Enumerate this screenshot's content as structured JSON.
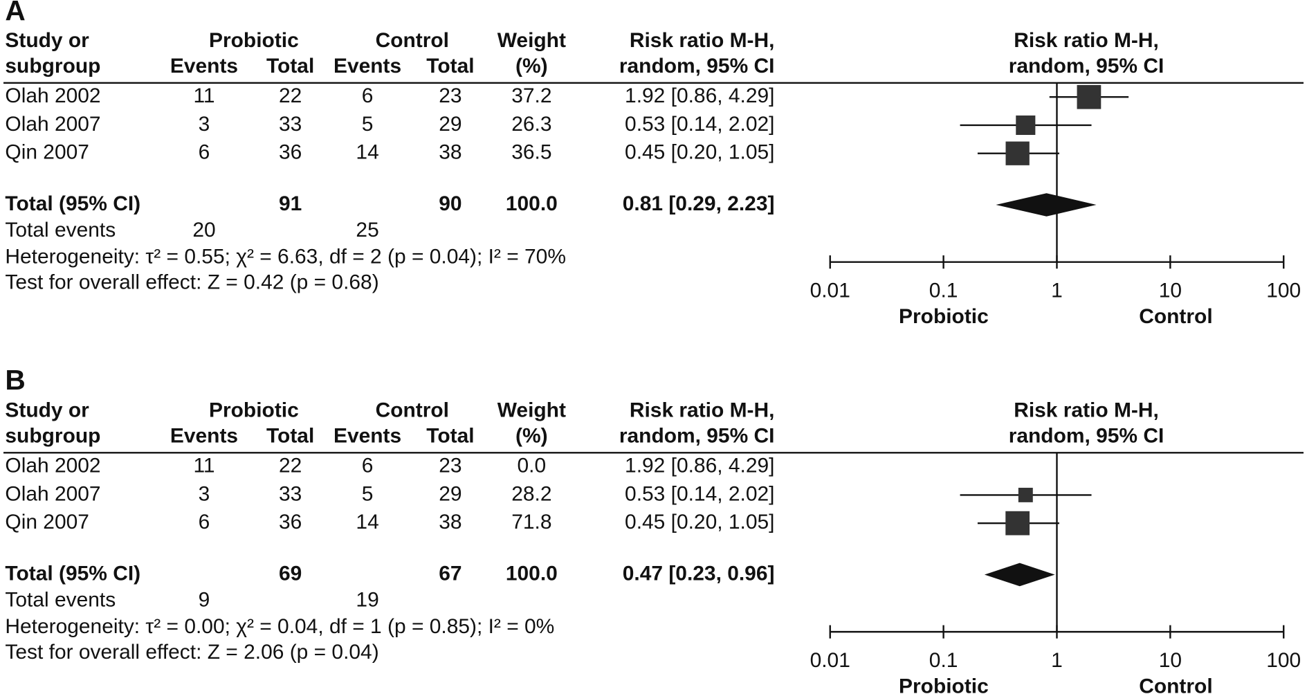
{
  "chart_data": [
    {
      "type": "forest",
      "label": "A",
      "header": {
        "study": [
          "Study or",
          "subgroup"
        ],
        "probiotic": "Probiotic",
        "control": "Control",
        "events": "Events",
        "total": "Total",
        "weight": [
          "Weight",
          "(%)"
        ],
        "ci": [
          "Risk ratio M-H,",
          "random, 95% CI"
        ],
        "plot": [
          "Risk ratio M-H,",
          "random, 95% CI"
        ]
      },
      "studies": [
        {
          "name": "Olah 2002",
          "events_probiotic": 11,
          "total_probiotic": 22,
          "events_control": 6,
          "total_control": 23,
          "weight": 37.2,
          "weight_label": "37.2",
          "ci_label": "1.92 [0.86, 4.29]",
          "rr": 1.92,
          "ci": [
            0.86,
            4.29
          ]
        },
        {
          "name": "Olah 2007",
          "events_probiotic": 3,
          "total_probiotic": 33,
          "events_control": 5,
          "total_control": 29,
          "weight": 26.3,
          "weight_label": "26.3",
          "ci_label": "0.53 [0.14, 2.02]",
          "rr": 0.53,
          "ci": [
            0.14,
            2.02
          ]
        },
        {
          "name": "Qin 2007",
          "events_probiotic": 6,
          "total_probiotic": 36,
          "events_control": 14,
          "total_control": 38,
          "weight": 36.5,
          "weight_label": "36.5",
          "ci_label": "0.45 [0.20, 1.05]",
          "rr": 0.45,
          "ci": [
            0.2,
            1.05
          ]
        }
      ],
      "total": {
        "name": "Total (95% CI)",
        "total_probiotic": 91,
        "total_control": 90,
        "weight_label": "100.0",
        "ci_label": "0.81 [0.29, 2.23]",
        "rr": 0.81,
        "ci": [
          0.29,
          2.23
        ]
      },
      "total_events": {
        "name": "Total events",
        "probiotic": 20,
        "control": 25
      },
      "heterogeneity": "Heterogeneity: τ² = 0.55; χ² = 6.63, df = 2 (p = 0.04); I² = 70%",
      "overall_effect": "Test for overall effect: Z = 0.42 (p = 0.68)",
      "log_x": true,
      "xlim": [
        0.01,
        100
      ],
      "xticks": [
        0.01,
        0.1,
        1,
        10,
        100
      ],
      "xlabels": [
        "Probiotic",
        "Control"
      ]
    },
    {
      "type": "forest",
      "label": "B",
      "header": {
        "study": [
          "Study or",
          "subgroup"
        ],
        "probiotic": "Probiotic",
        "control": "Control",
        "events": "Events",
        "total": "Total",
        "weight": [
          "Weight",
          "(%)"
        ],
        "ci": [
          "Risk ratio M-H,",
          "random, 95% CI"
        ],
        "plot": [
          "Risk ratio M-H,",
          "random, 95% CI"
        ]
      },
      "studies": [
        {
          "name": "Olah 2002",
          "events_probiotic": 11,
          "total_probiotic": 22,
          "events_control": 6,
          "total_control": 23,
          "weight": 0,
          "weight_label": "0.0",
          "ci_label": "1.92 [0.86, 4.29]",
          "rr": 1.92,
          "ci": [
            0.86,
            4.29
          ]
        },
        {
          "name": "Olah 2007",
          "events_probiotic": 3,
          "total_probiotic": 33,
          "events_control": 5,
          "total_control": 29,
          "weight": 28.2,
          "weight_label": "28.2",
          "ci_label": "0.53 [0.14, 2.02]",
          "rr": 0.53,
          "ci": [
            0.14,
            2.02
          ]
        },
        {
          "name": "Qin 2007",
          "events_probiotic": 6,
          "total_probiotic": 36,
          "events_control": 14,
          "total_control": 38,
          "weight": 71.8,
          "weight_label": "71.8",
          "ci_label": "0.45 [0.20, 1.05]",
          "rr": 0.45,
          "ci": [
            0.2,
            1.05
          ]
        }
      ],
      "total": {
        "name": "Total (95% CI)",
        "total_probiotic": 69,
        "total_control": 67,
        "weight_label": "100.0",
        "ci_label": "0.47 [0.23, 0.96]",
        "rr": 0.47,
        "ci": [
          0.23,
          0.96
        ]
      },
      "total_events": {
        "name": "Total events",
        "probiotic": 9,
        "control": 19
      },
      "heterogeneity": "Heterogeneity: τ² = 0.00; χ² = 0.04, df = 1 (p = 0.85); I² = 0%",
      "overall_effect": "Test for overall effect: Z = 2.06 (p = 0.04)",
      "log_x": true,
      "xlim": [
        0.01,
        100
      ],
      "xticks": [
        0.01,
        0.1,
        1,
        10,
        100
      ],
      "xlabels": [
        "Probiotic",
        "Control"
      ]
    }
  ]
}
